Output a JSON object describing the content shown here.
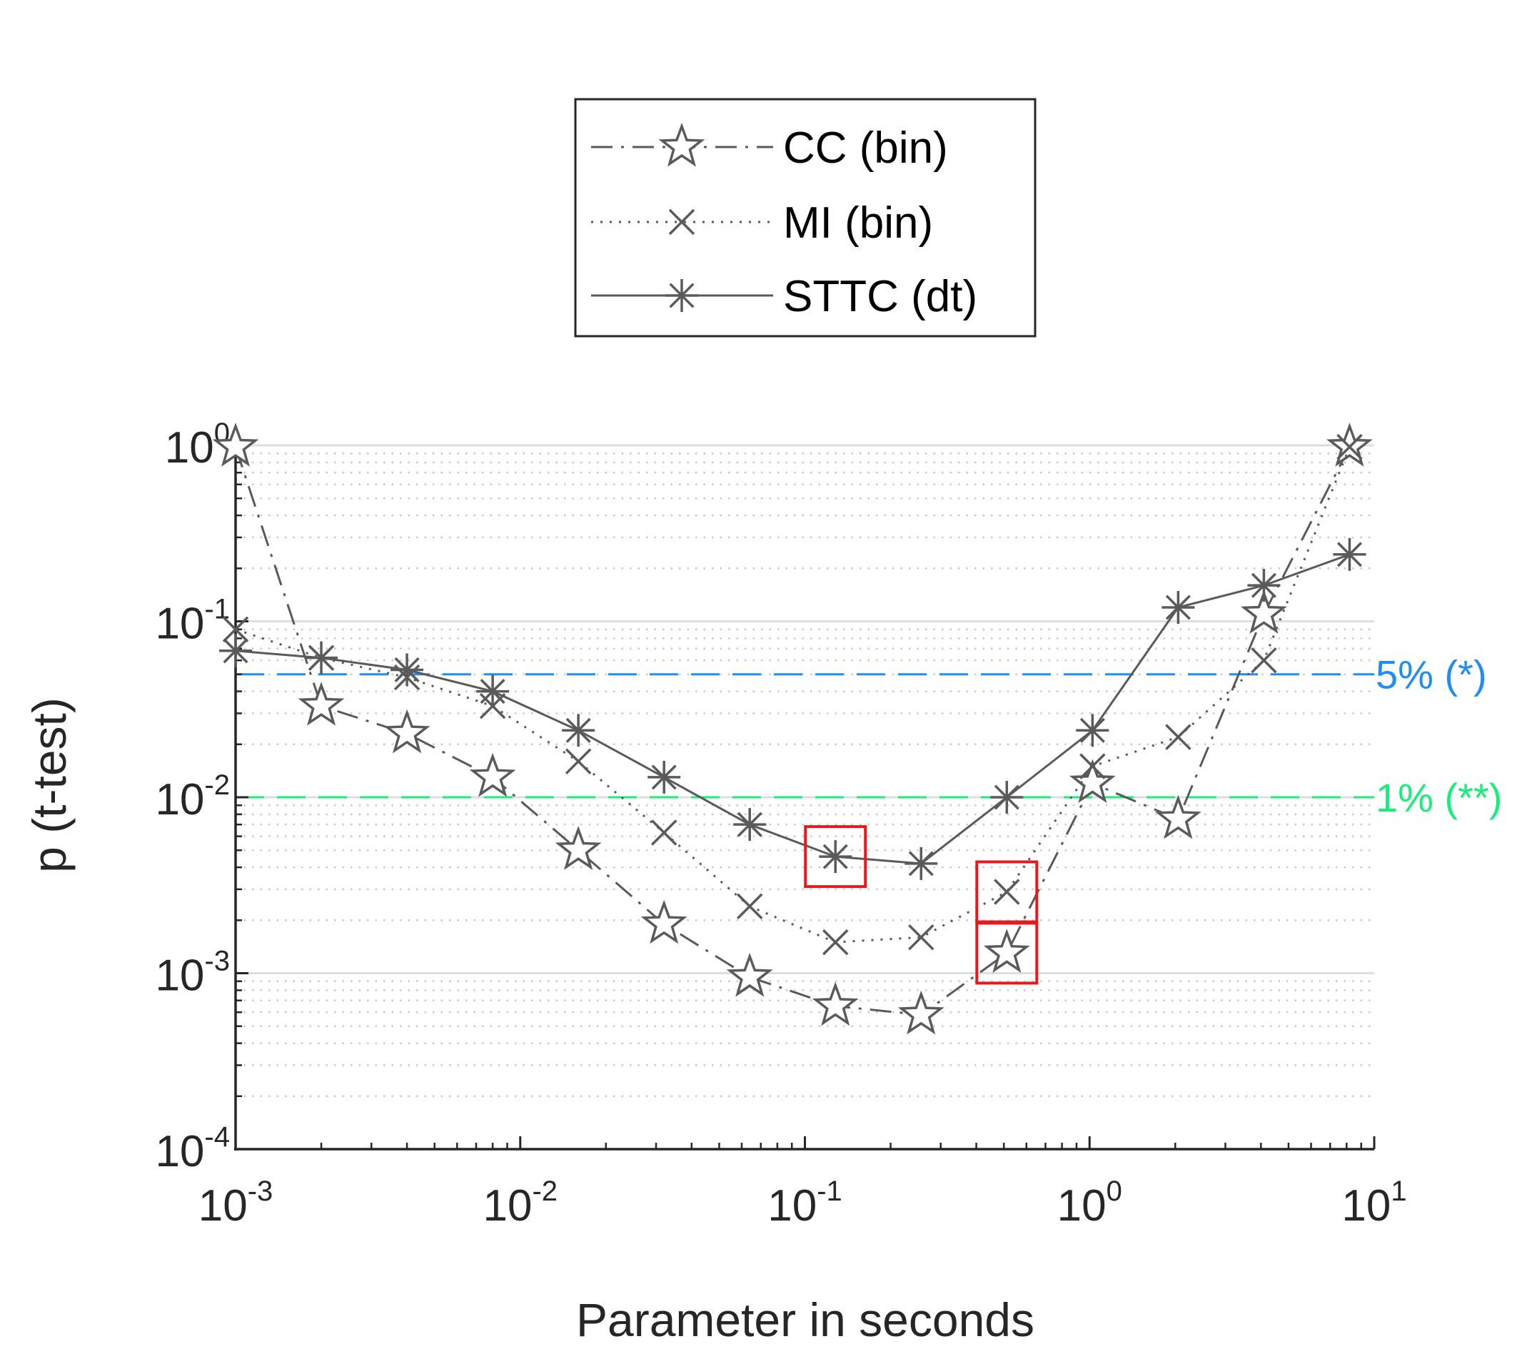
{
  "chart_data": {
    "type": "line",
    "xscale": "log",
    "yscale": "log",
    "xlim": [
      0.001,
      10
    ],
    "ylim": [
      0.0001,
      1
    ],
    "xlabel": "Parameter in seconds",
    "ylabel": "p (t-test)",
    "x_ticks": [
      {
        "base": "10",
        "exp": "-3",
        "value": 0.001
      },
      {
        "base": "10",
        "exp": "-2",
        "value": 0.01
      },
      {
        "base": "10",
        "exp": "-1",
        "value": 0.1
      },
      {
        "base": "10",
        "exp": "0",
        "value": 1
      },
      {
        "base": "10",
        "exp": "1",
        "value": 10
      }
    ],
    "y_ticks": [
      {
        "base": "10",
        "exp": "0",
        "value": 1
      },
      {
        "base": "10",
        "exp": "-1",
        "value": 0.1
      },
      {
        "base": "10",
        "exp": "-2",
        "value": 0.01
      },
      {
        "base": "10",
        "exp": "-3",
        "value": 0.001
      },
      {
        "base": "10",
        "exp": "-4",
        "value": 0.0001
      }
    ],
    "grid": true,
    "legend_position": "top",
    "series": [
      {
        "name": "CC (bin)",
        "marker": "star",
        "linestyle": "dashdot",
        "color": "#5a5a5a",
        "x": [
          0.001,
          0.002,
          0.004,
          0.008,
          0.016,
          0.032,
          0.064,
          0.128,
          0.256,
          0.512,
          1.024,
          2.048,
          4.096,
          8.192
        ],
        "y": [
          0.98,
          0.033,
          0.023,
          0.013,
          0.005,
          0.0019,
          0.00095,
          0.00065,
          0.00058,
          0.0013,
          0.012,
          0.0075,
          0.11,
          0.98
        ]
      },
      {
        "name": "MI (bin)",
        "marker": "x",
        "linestyle": "dotted",
        "color": "#5a5a5a",
        "x": [
          0.001,
          0.002,
          0.004,
          0.008,
          0.016,
          0.032,
          0.064,
          0.128,
          0.256,
          0.512,
          1.024,
          2.048,
          4.096,
          8.192
        ],
        "y": [
          0.09,
          0.062,
          0.048,
          0.033,
          0.016,
          0.0063,
          0.0024,
          0.0015,
          0.0016,
          0.0029,
          0.015,
          0.022,
          0.06,
          0.98
        ]
      },
      {
        "name": "STTC (dt)",
        "marker": "asterisk",
        "linestyle": "solid",
        "color": "#5a5a5a",
        "x": [
          0.001,
          0.002,
          0.004,
          0.008,
          0.016,
          0.032,
          0.064,
          0.128,
          0.256,
          0.512,
          1.024,
          2.048,
          4.096,
          8.192
        ],
        "y": [
          0.068,
          0.062,
          0.053,
          0.04,
          0.024,
          0.013,
          0.007,
          0.0046,
          0.0042,
          0.01,
          0.024,
          0.12,
          0.16,
          0.24
        ]
      }
    ],
    "reference_lines": [
      {
        "value": 0.05,
        "label": "5% (*)",
        "color": "#1f8ef0"
      },
      {
        "value": 0.01,
        "label": "1% (**)",
        "color": "#19ee7a"
      }
    ],
    "highlights": [
      {
        "series": "STTC (dt)",
        "x": 0.128,
        "y": 0.0046,
        "color": "#e8191e"
      },
      {
        "series": "MI (bin)",
        "x": 0.512,
        "y": 0.0029,
        "color": "#e8191e"
      },
      {
        "series": "CC (bin)",
        "x": 0.512,
        "y": 0.0013,
        "color": "#e8191e"
      }
    ]
  }
}
